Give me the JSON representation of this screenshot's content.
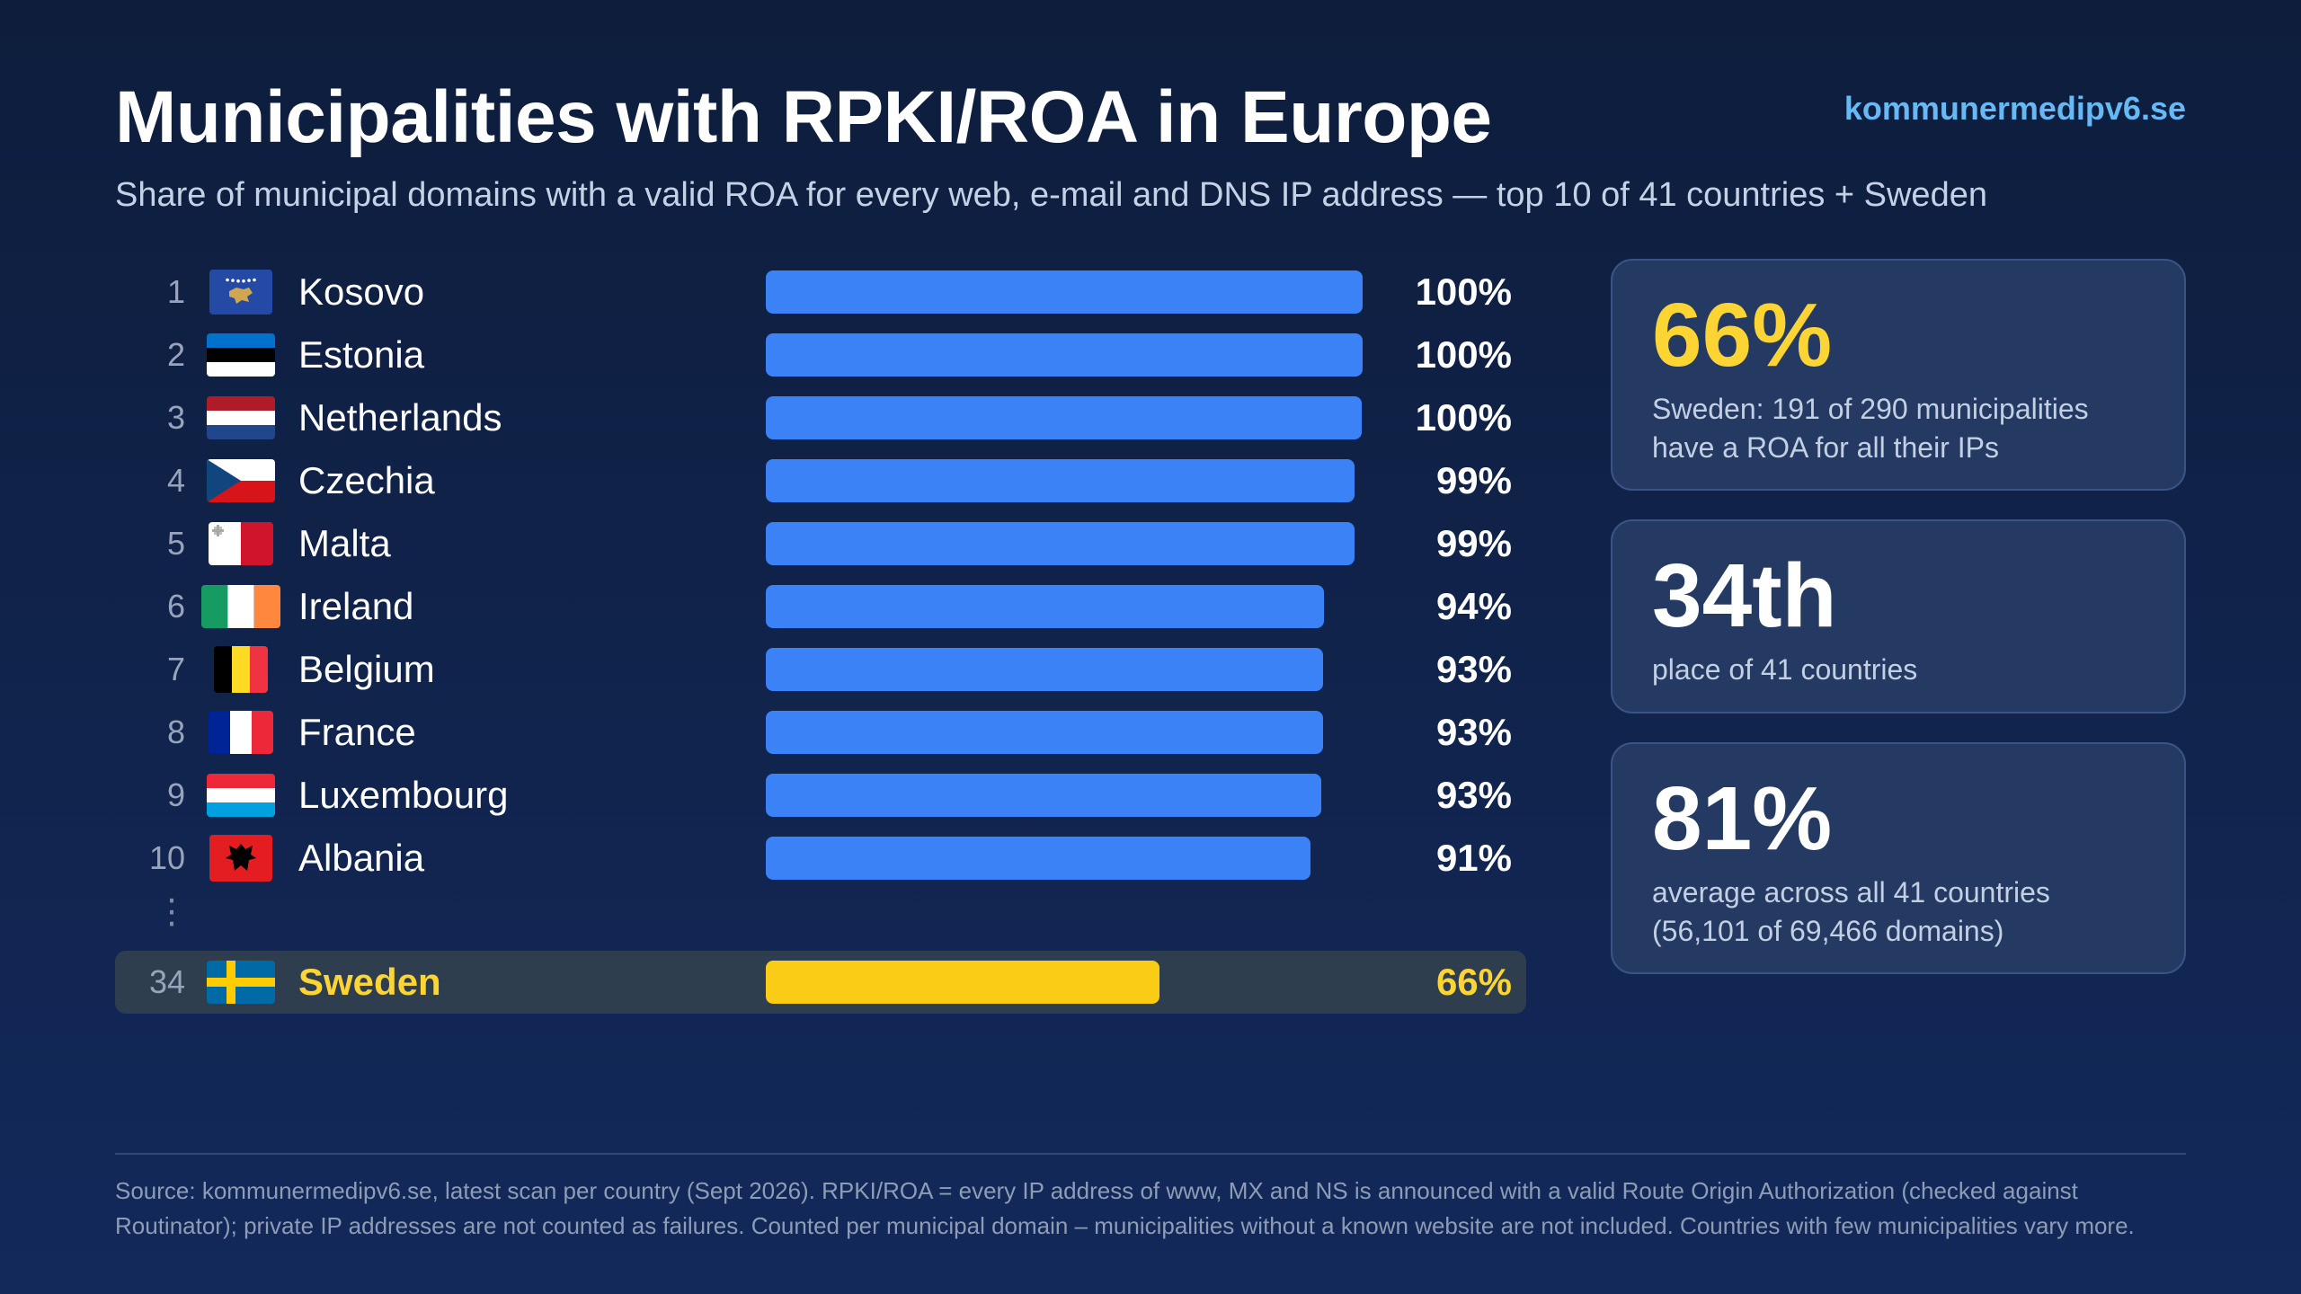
{
  "header": {
    "title": "Municipalities with RPKI/ROA in Europe",
    "subtitle": "Share of municipal domains with a valid ROA for every web, e-mail and DNS IP address — top 10 of 41 countries + Sweden",
    "brand": "kommunermedipv6.se"
  },
  "chart_data": {
    "type": "bar",
    "orientation": "horizontal",
    "title": "Municipalities with RPKI/ROA in Europe",
    "categories": [
      "Kosovo",
      "Estonia",
      "Netherlands",
      "Czechia",
      "Malta",
      "Ireland",
      "Belgium",
      "France",
      "Luxembourg",
      "Albania",
      "Sweden"
    ],
    "ranks": [
      "1",
      "2",
      "3",
      "4",
      "5",
      "6",
      "7",
      "8",
      "9",
      "10",
      "34"
    ],
    "values": [
      100,
      100,
      99.8,
      98.6,
      98.6,
      93.5,
      93.3,
      93.3,
      93.1,
      91.2,
      65.9
    ],
    "value_labels": [
      "100%",
      "100%",
      "100%",
      "99%",
      "99%",
      "94%",
      "93%",
      "93%",
      "93%",
      "91%",
      "66%"
    ],
    "flags": [
      "kosovo",
      "estonia",
      "netherlands",
      "czechia",
      "malta",
      "ireland",
      "belgium",
      "france",
      "luxembourg",
      "albania",
      "sweden"
    ],
    "highlight": "Sweden",
    "ellipsis": "⋮",
    "xlim": [
      0,
      100
    ],
    "colors": {
      "bar": "#3b82f6",
      "highlight": "#facc15",
      "highlight_text": "#fcd535"
    }
  },
  "stats": [
    {
      "value": "66%",
      "desc": "Sweden: 191 of 290 municipalities have a ROA for all their IPs"
    },
    {
      "value": "34th",
      "desc": "place of 41 countries"
    },
    {
      "value": "81%",
      "desc": "average across all 41 countries (56,101 of 69,466 domains)"
    }
  ],
  "footer": {
    "source": "Source: kommunermedipv6.se, latest scan per country (Sept 2026). RPKI/ROA = every IP address of www, MX and NS is announced with a valid Route Origin Authorization (checked against Routinator); private IP addresses are not counted as failures. Counted per municipal domain – municipalities without a known website are not included. Countries with few municipalities vary more."
  }
}
